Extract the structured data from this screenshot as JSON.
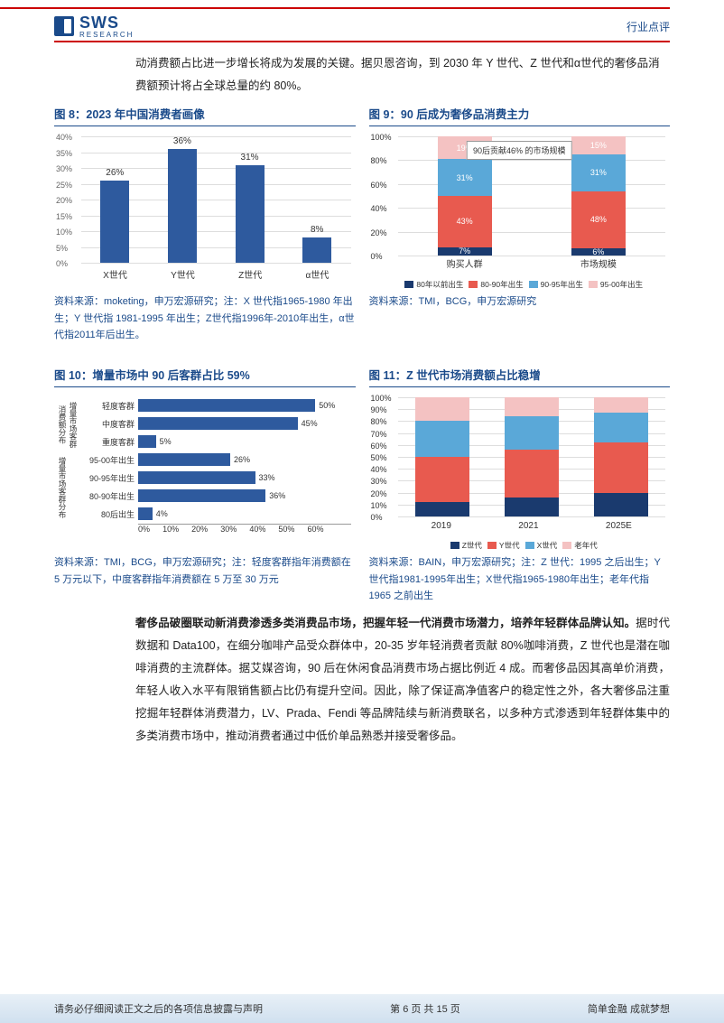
{
  "header": {
    "category": "行业点评",
    "logo_main": "SWS",
    "logo_sub": "RESEARCH"
  },
  "intro": "动消费额占比进一步增长将成为发展的关键。据贝恩咨询，到 2030 年 Y 世代、Z 世代和α世代的奢侈品消费额预计将占全球总量的约 80%。",
  "chart8": {
    "title": "图 8：2023 年中国消费者画像",
    "type": "bar",
    "categories": [
      "X世代",
      "Y世代",
      "Z世代",
      "α世代"
    ],
    "values": [
      26,
      36,
      31,
      8
    ],
    "bar_color": "#2e5a9e",
    "ylim": [
      0,
      40
    ],
    "ytick_step": 5,
    "grid_color": "#dddddd",
    "source": "资料来源：moketing，申万宏源研究；注：X 世代指1965-1980 年出生；Y 世代指 1981-1995 年出生；Z世代指1996年-2010年出生，α世代指2011年后出生。"
  },
  "chart9": {
    "title": "图 9：90 后成为奢侈品消费主力",
    "type": "stacked_bar",
    "categories": [
      "购买人群",
      "市场规模"
    ],
    "series": [
      {
        "name": "80年以前出生",
        "color": "#1a3a6e",
        "values": [
          7,
          6
        ]
      },
      {
        "name": "80-90年出生",
        "color": "#e85a4f",
        "values": [
          43,
          48
        ]
      },
      {
        "name": "90-95年出生",
        "color": "#5aa8d8",
        "values": [
          31,
          31
        ]
      },
      {
        "name": "95-00年出生",
        "color": "#f4c2c2",
        "values": [
          19,
          15
        ]
      }
    ],
    "annotation": "90后贡献46%\n的市场规模",
    "ylim": [
      0,
      100
    ],
    "ytick_step": 20,
    "source": "资料来源：TMI，BCG，申万宏源研究"
  },
  "chart10": {
    "title": "图 10：增量市场中 90 后客群占比 59%",
    "type": "hbar",
    "groups": [
      {
        "label": "增量市场客群\n消费额分布",
        "items": [
          {
            "label": "轻度客群",
            "value": 50
          },
          {
            "label": "中度客群",
            "value": 45
          },
          {
            "label": "重度客群",
            "value": 5
          }
        ]
      },
      {
        "label": "增量市场客群分布",
        "items": [
          {
            "label": "95-00年出生",
            "value": 26
          },
          {
            "label": "90-95年出生",
            "value": 33
          },
          {
            "label": "80-90年出生",
            "value": 36
          },
          {
            "label": "80后出生",
            "value": 4
          }
        ]
      }
    ],
    "bar_color": "#2e5a9e",
    "xlim": [
      0,
      60
    ],
    "xtick_step": 10,
    "xticks": [
      "0%",
      "10%",
      "20%",
      "30%",
      "40%",
      "50%",
      "60%"
    ],
    "source": "资料来源：TMI，BCG，申万宏源研究；注：轻度客群指年消费额在 5 万元以下，中度客群指年消费额在 5 万至 30 万元"
  },
  "chart11": {
    "title": "图 11：Z 世代市场消费额占比稳增",
    "type": "stacked_bar",
    "categories": [
      "2019",
      "2021",
      "2025E"
    ],
    "series": [
      {
        "name": "Z世代",
        "color": "#1a3a6e",
        "values": [
          12,
          16,
          20
        ]
      },
      {
        "name": "Y世代",
        "color": "#e85a4f",
        "values": [
          38,
          40,
          42
        ]
      },
      {
        "name": "X世代",
        "color": "#5aa8d8",
        "values": [
          30,
          28,
          25
        ]
      },
      {
        "name": "老年代",
        "color": "#f4c2c2",
        "values": [
          20,
          16,
          13
        ]
      }
    ],
    "ylim": [
      0,
      100
    ],
    "ytick_step": 10,
    "source": "资料来源：BAIN，申万宏源研究；注：Z 世代：1995 之后出生；Y世代指1981-1995年出生；X世代指1965-1980年出生；老年代指 1965 之前出生"
  },
  "body": {
    "bold": "奢侈品破圈联动新消费渗透多类消费品市场，把握年轻一代消费市场潜力，培养年轻群体品牌认知。",
    "rest": "据时代数据和 Data100，在细分咖啡产品受众群体中，20-35 岁年轻消费者贡献 80%咖啡消费，Z 世代也是潜在咖啡消费的主流群体。据艾媒咨询，90 后在休闲食品消费市场占据比例近 4 成。而奢侈品因其高单价消费，年轻人收入水平有限销售额占比仍有提升空间。因此，除了保证高净值客户的稳定性之外，各大奢侈品注重挖掘年轻群体消费潜力，LV、Prada、Fendi 等品牌陆续与新消费联名，以多种方式渗透到年轻群体集中的多类消费市场中，推动消费者通过中低价单品熟悉并接受奢侈品。"
  },
  "footer": {
    "left": "请务必仔细阅读正文之后的各项信息披露与声明",
    "center": "第 6 页 共 15 页",
    "right": "简单金融 成就梦想"
  }
}
